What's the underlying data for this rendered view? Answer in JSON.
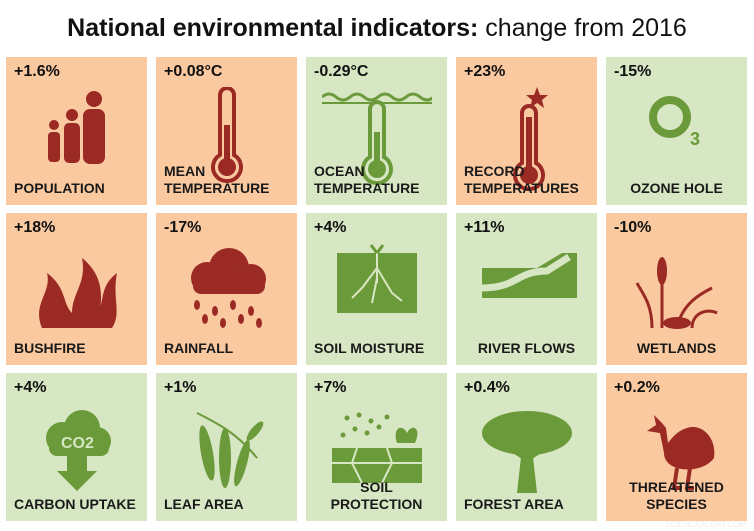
{
  "title": {
    "bold": "National environmental indicators:",
    "rest": " change from 2016"
  },
  "colors": {
    "orange_tile": "#fac9a0",
    "green_tile": "#d7e6c3",
    "red_icon": "#9b2a25",
    "green_icon": "#6b9a3a"
  },
  "tiles": [
    {
      "value": "+1.6%",
      "label": "POPULATION",
      "status": "orange",
      "icon": "people-icon"
    },
    {
      "value": "+0.08°C",
      "label": "MEAN TEMPERATURE",
      "status": "orange",
      "icon": "thermometer-icon"
    },
    {
      "value": "-0.29°C",
      "label": "OCEAN TEMPERATURE",
      "status": "green",
      "icon": "ocean-thermometer-icon"
    },
    {
      "value": "+23%",
      "label": "RECORD TEMPERATURES",
      "status": "orange",
      "icon": "record-thermometer-icon"
    },
    {
      "value": "-15%",
      "label": "OZONE HOLE",
      "status": "green",
      "icon": "ozone-icon"
    },
    {
      "value": "+18%",
      "label": "BUSHFIRE",
      "status": "orange",
      "icon": "fire-icon"
    },
    {
      "value": "-17%",
      "label": "RAINFALL",
      "status": "orange",
      "icon": "rain-cloud-icon"
    },
    {
      "value": "+4%",
      "label": "SOIL MOISTURE",
      "status": "green",
      "icon": "soil-roots-icon"
    },
    {
      "value": "+11%",
      "label": "RIVER FLOWS",
      "status": "green",
      "icon": "river-icon"
    },
    {
      "value": "-10%",
      "label": "WETLANDS",
      "status": "orange",
      "icon": "wetland-reeds-icon"
    },
    {
      "value": "+4%",
      "label": "CARBON UPTAKE",
      "status": "green",
      "icon": "co2-arrow-icon"
    },
    {
      "value": "+1%",
      "label": "LEAF AREA",
      "status": "green",
      "icon": "leaves-icon"
    },
    {
      "value": "+7%",
      "label": "SOIL PROTECTION",
      "status": "green",
      "icon": "soil-protection-icon"
    },
    {
      "value": "+0.4%",
      "label": "FOREST AREA",
      "status": "green",
      "icon": "tree-icon"
    },
    {
      "value": "+0.2%",
      "label": "THREATENED SPECIES",
      "status": "orange",
      "icon": "cassowary-icon"
    }
  ],
  "icon_text": {
    "ozone": "3",
    "co2": "CO2"
  },
  "watermark": "SCIENCEALERT.COM"
}
